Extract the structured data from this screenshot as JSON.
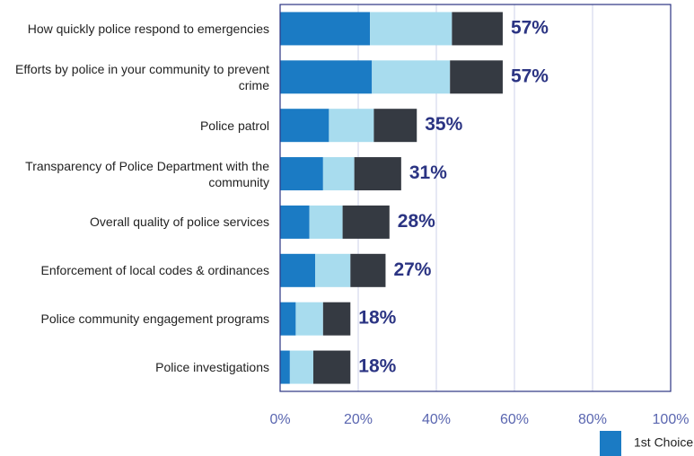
{
  "chart_data": {
    "type": "stacked-barh",
    "categories": [
      "How quickly police respond to emergencies",
      "Efforts by police in your community to prevent crime",
      "Police patrol",
      "Transparency of Police Department with the community",
      "Overall quality of police services",
      "Enforcement of local codes & ordinances",
      "Police community engagement programs",
      "Police investigations"
    ],
    "series": [
      {
        "name": "1st Choice",
        "color": "#1b7bc4",
        "values": [
          23,
          23.5,
          12.5,
          11,
          7.5,
          9,
          4,
          2.5
        ]
      },
      {
        "color": "#a8dcee",
        "values": [
          21,
          20,
          11.5,
          8,
          8.5,
          9,
          7,
          6
        ]
      },
      {
        "color": "#353a42",
        "values": [
          13,
          13.5,
          11,
          12,
          12,
          9,
          7,
          9.5
        ]
      }
    ],
    "totals": [
      57,
      57,
      35,
      31,
      28,
      27,
      18,
      18
    ],
    "total_labels": [
      "57%",
      "57%",
      "35%",
      "31%",
      "28%",
      "27%",
      "18%",
      "18%"
    ],
    "xlim": [
      0,
      100
    ],
    "xticks": [
      {
        "value": 0,
        "label": "0%"
      },
      {
        "value": 20,
        "label": "20%"
      },
      {
        "value": 40,
        "label": "40%"
      },
      {
        "value": 60,
        "label": "60%"
      },
      {
        "value": 80,
        "label": "80%"
      },
      {
        "value": 100,
        "label": "100%"
      }
    ],
    "grid": true
  }
}
